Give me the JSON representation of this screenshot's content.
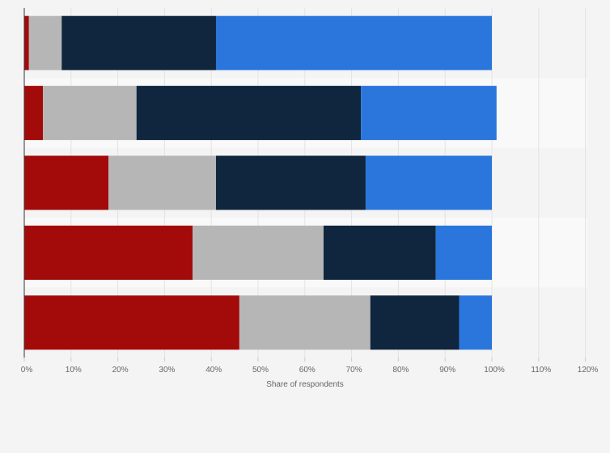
{
  "chart_data": {
    "type": "bar",
    "orientation": "horizontal",
    "stacked": true,
    "title": "",
    "xlabel": "Share of respondents",
    "ylabel": "",
    "xlim": [
      0,
      120
    ],
    "x_ticks": [
      0,
      10,
      20,
      30,
      40,
      50,
      60,
      70,
      80,
      90,
      100,
      110,
      120
    ],
    "x_tick_labels": [
      "0%",
      "10%",
      "20%",
      "30%",
      "40%",
      "50%",
      "60%",
      "70%",
      "80%",
      "90%",
      "100%",
      "110%",
      "120%"
    ],
    "categories": [
      "",
      "",
      "",
      "",
      ""
    ],
    "series": [
      {
        "color": "#a30a0a",
        "values": [
          1,
          4,
          18,
          36,
          46
        ]
      },
      {
        "color": "#b6b6b6",
        "values": [
          7,
          20,
          23,
          28,
          28
        ]
      },
      {
        "color": "#10263e",
        "values": [
          33,
          48,
          32,
          24,
          19
        ]
      },
      {
        "color": "#2a76dd",
        "values": [
          59,
          29,
          27,
          12,
          7
        ]
      }
    ],
    "grid": true,
    "legend": "none"
  }
}
